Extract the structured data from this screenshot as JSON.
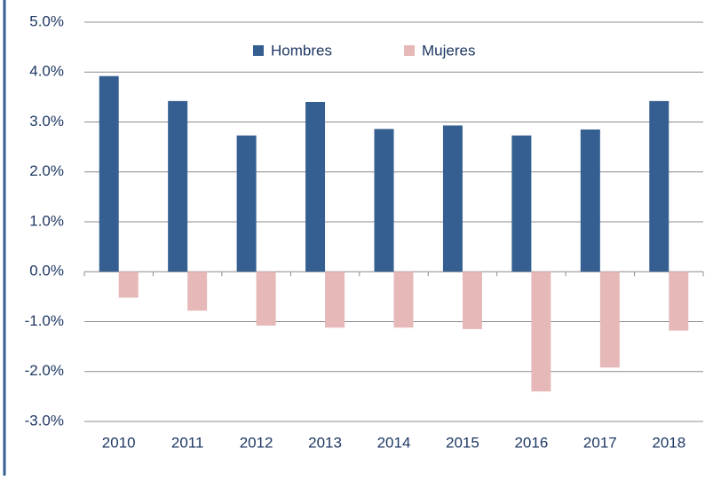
{
  "chart_data": {
    "type": "bar",
    "categories": [
      "2010",
      "2011",
      "2012",
      "2013",
      "2014",
      "2015",
      "2016",
      "2017",
      "2018"
    ],
    "series": [
      {
        "name": "Hombres",
        "color": "#365f91",
        "values": [
          3.92,
          3.42,
          2.73,
          3.4,
          2.86,
          2.93,
          2.73,
          2.85,
          3.42
        ]
      },
      {
        "name": "Mujeres",
        "color": "#e6b9b8",
        "values": [
          -0.52,
          -0.78,
          -1.08,
          -1.12,
          -1.12,
          -1.15,
          -2.4,
          -1.92,
          -1.18
        ]
      }
    ],
    "ylim": [
      -3,
      5
    ],
    "yticks": [
      {
        "value": 5,
        "label": "5.0%"
      },
      {
        "value": 4,
        "label": "4.0%"
      },
      {
        "value": 3,
        "label": "3.0%"
      },
      {
        "value": 2,
        "label": "2.0%"
      },
      {
        "value": 1,
        "label": "1.0%"
      },
      {
        "value": 0,
        "label": "0.0%"
      },
      {
        "value": -1,
        "label": "-1.0%"
      },
      {
        "value": -2,
        "label": "-2.0%"
      },
      {
        "value": -3,
        "label": "-3.0%"
      }
    ],
    "grid": true,
    "legend": "top"
  }
}
